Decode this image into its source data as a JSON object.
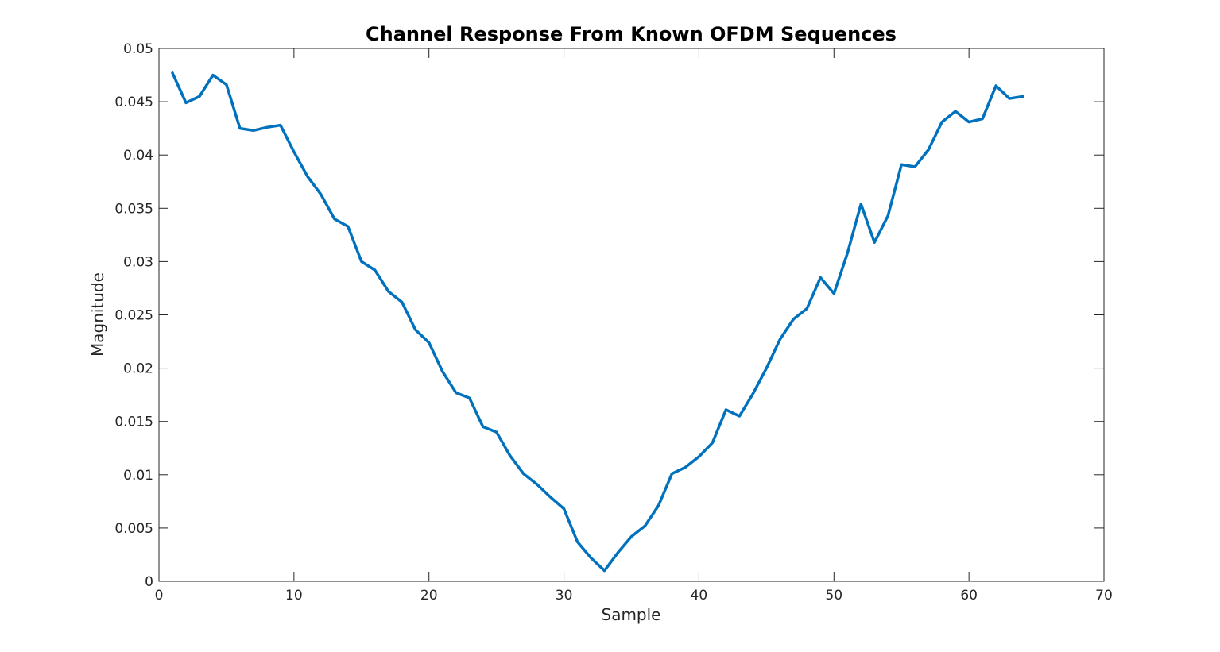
{
  "chart_data": {
    "type": "line",
    "title": "Channel Response From Known OFDM Sequences",
    "xlabel": "Sample",
    "ylabel": "Magnitude",
    "xlim": [
      0,
      70
    ],
    "ylim": [
      0,
      0.05
    ],
    "xticks": [
      0,
      10,
      20,
      30,
      40,
      50,
      60,
      70
    ],
    "xtick_labels": [
      "0",
      "10",
      "20",
      "30",
      "40",
      "50",
      "60",
      "70"
    ],
    "yticks": [
      0,
      0.005,
      0.01,
      0.015,
      0.02,
      0.025,
      0.03,
      0.035,
      0.04,
      0.045,
      0.05
    ],
    "ytick_labels": [
      "0",
      "0.005",
      "0.01",
      "0.015",
      "0.02",
      "0.025",
      "0.03",
      "0.035",
      "0.04",
      "0.045",
      "0.05"
    ],
    "grid": false,
    "legend": "none",
    "series": [
      {
        "color": "#0072BD",
        "x": [
          1,
          2,
          3,
          4,
          5,
          6,
          7,
          8,
          9,
          10,
          11,
          12,
          13,
          14,
          15,
          16,
          17,
          18,
          19,
          20,
          21,
          22,
          23,
          24,
          25,
          26,
          27,
          28,
          29,
          30,
          31,
          32,
          33,
          34,
          35,
          36,
          37,
          38,
          39,
          40,
          41,
          42,
          43,
          44,
          45,
          46,
          47,
          48,
          49,
          50,
          51,
          52,
          53,
          54,
          55,
          56,
          57,
          58,
          59,
          60,
          61,
          62,
          63,
          64
        ],
        "y": [
          0.0477,
          0.0449,
          0.0455,
          0.0475,
          0.0466,
          0.0425,
          0.0423,
          0.0426,
          0.0428,
          0.0403,
          0.038,
          0.0363,
          0.034,
          0.0333,
          0.03,
          0.0292,
          0.0272,
          0.0262,
          0.0236,
          0.0224,
          0.0197,
          0.0177,
          0.0172,
          0.0145,
          0.014,
          0.0118,
          0.0101,
          0.0091,
          0.0079,
          0.0068,
          0.0037,
          0.0022,
          0.001,
          0.0027,
          0.0042,
          0.0052,
          0.0071,
          0.0101,
          0.0107,
          0.0117,
          0.013,
          0.0161,
          0.0155,
          0.0176,
          0.02,
          0.0227,
          0.0246,
          0.0256,
          0.0285,
          0.027,
          0.0308,
          0.0354,
          0.0318,
          0.0343,
          0.0391,
          0.0389,
          0.0405,
          0.0431,
          0.0441,
          0.0431,
          0.0434,
          0.0465,
          0.0453,
          0.0455
        ]
      }
    ]
  }
}
